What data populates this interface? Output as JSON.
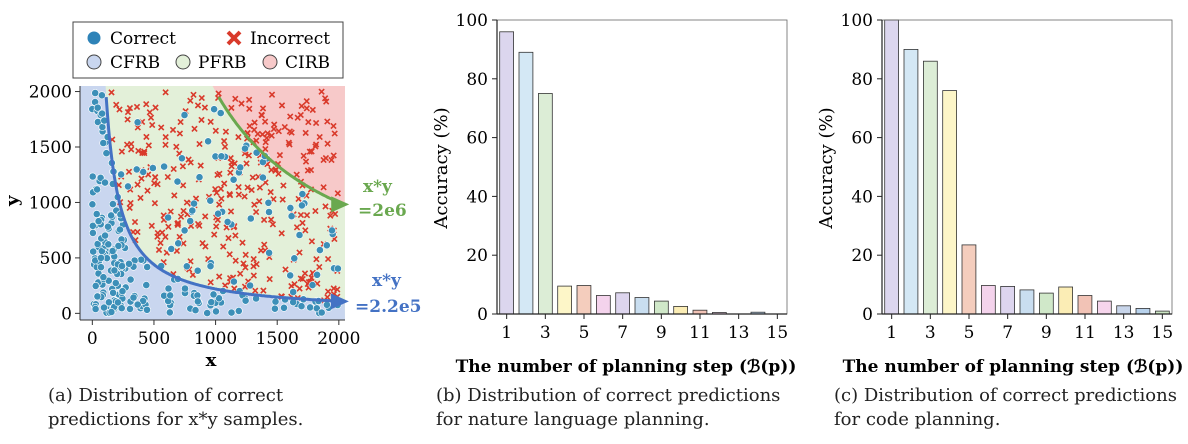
{
  "chart_data": [
    {
      "type": "scatter",
      "caption": "(a)  Distribution  of  correct  predictions for x*y samples.",
      "xlabel": "x",
      "ylabel": "y",
      "xlim": [
        -100,
        2050
      ],
      "ylim": [
        -60,
        2050
      ],
      "xticks": [
        "0",
        "500",
        "1000",
        "1500",
        "2000"
      ],
      "yticks": [
        "0",
        "500",
        "1000",
        "1500",
        "2000"
      ],
      "legend": {
        "correct": "Correct",
        "incorrect": "Incorrect",
        "cfrb": "CFRB",
        "pfrb": "PFRB",
        "cirb": "CIRB"
      },
      "regions": {
        "cfrb_threshold": 220000,
        "cirb_threshold": 2000000
      },
      "curves": [
        {
          "label_line1": "x*y",
          "label_line2": "=2e6",
          "k": 2000000,
          "color": "#6aa84f"
        },
        {
          "label_line1": "x*y",
          "label_line2": "=2.2e5",
          "k": 220000,
          "color": "#4472c4"
        }
      ],
      "colors": {
        "correct": "#3c8fb8",
        "incorrect": "#d93a2b",
        "cfrb": "#c9d6ef",
        "pfrb": "#e3f0d9",
        "cirb": "#f7c9c9"
      }
    },
    {
      "type": "bar",
      "caption": "(b)  Distribution  of  correct  predictions for nature language planning.",
      "xlabel": "The number of planning step (ℬ(p))",
      "ylabel": "Accuracy (%)",
      "ylim": [
        0,
        100
      ],
      "yticks": [
        "0",
        "20",
        "40",
        "60",
        "80",
        "100"
      ],
      "xticks": [
        "1",
        "3",
        "5",
        "7",
        "9",
        "11",
        "13",
        "15"
      ],
      "categories": [
        1,
        2,
        3,
        4,
        5,
        6,
        7,
        8,
        9,
        10,
        11,
        12,
        13,
        14,
        15
      ],
      "values": [
        96,
        89,
        75,
        9.5,
        9.7,
        6.3,
        7.2,
        5.6,
        4.4,
        2.6,
        1.3,
        0.5,
        0,
        0.6,
        0
      ]
    },
    {
      "type": "bar",
      "caption": "(c)  Distribution  of  correct  predictions for code planning.",
      "xlabel": "The number of planning step (ℬ(p))",
      "ylabel": "Accuracy (%)",
      "ylim": [
        0,
        100
      ],
      "yticks": [
        "0",
        "20",
        "40",
        "60",
        "80",
        "100"
      ],
      "xticks": [
        "1",
        "3",
        "5",
        "7",
        "9",
        "11",
        "13",
        "15"
      ],
      "categories": [
        1,
        2,
        3,
        4,
        5,
        6,
        7,
        8,
        9,
        10,
        11,
        12,
        13,
        14,
        15
      ],
      "values": [
        100,
        90,
        86,
        76,
        23.5,
        9.7,
        9.4,
        8.2,
        7.1,
        9.2,
        6.3,
        4.4,
        2.8,
        1.9,
        1.0
      ]
    }
  ],
  "bar_colors": [
    "#dcd6ee",
    "#d4e8f5",
    "#dcedd6",
    "#fdf6c8",
    "#f4cdbd",
    "#f4d3ec",
    "#ddd5ee",
    "#c9def0",
    "#d0e8c9",
    "#fbedb5",
    "#f2c3b6",
    "#f6d5ec",
    "#c8d5ea",
    "#b8d2ec",
    "#cce6c4"
  ]
}
